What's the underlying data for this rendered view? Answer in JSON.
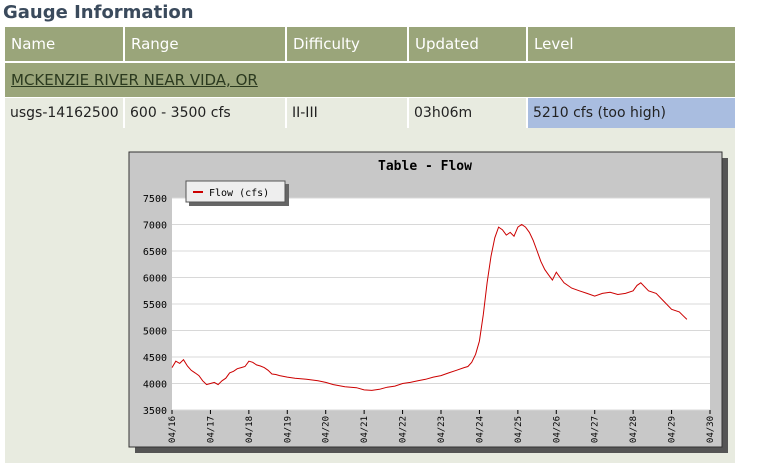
{
  "page": {
    "title": "Gauge Information"
  },
  "table": {
    "headers": [
      "Name",
      "Range",
      "Difficulty",
      "Updated",
      "Level"
    ],
    "river_name": "MCKENZIE RIVER NEAR VIDA, OR",
    "row": {
      "name": "usgs-14162500",
      "range": "600 - 3500 cfs",
      "difficulty": "II-III",
      "updated": "03h06m",
      "level": "5210 cfs (too high)"
    }
  },
  "colors": {
    "header_bg": "#9aa57a",
    "row_bg": "#e8ebe0",
    "level_bg": "#a9bde0",
    "series": "#cc0000"
  },
  "chart_data": {
    "type": "line",
    "title": "Table - Flow",
    "legend": "top-left",
    "grid": true,
    "ylim": [
      3500,
      7500
    ],
    "y_ticks": [
      "3500",
      "4000",
      "4500",
      "5000",
      "5500",
      "6000",
      "6500",
      "7000",
      "7500"
    ],
    "x_ticks": [
      "04/16",
      "04/17",
      "04/18",
      "04/19",
      "04/20",
      "04/21",
      "04/22",
      "04/23",
      "04/24",
      "04/25",
      "04/26",
      "04/27",
      "04/28",
      "04/29",
      "04/30"
    ],
    "xlim": [
      0,
      14
    ],
    "series": [
      {
        "name": "Flow (cfs)",
        "x": [
          0,
          0.1,
          0.2,
          0.3,
          0.4,
          0.5,
          0.6,
          0.7,
          0.8,
          0.9,
          1.0,
          1.1,
          1.2,
          1.3,
          1.4,
          1.5,
          1.6,
          1.7,
          1.8,
          1.9,
          2.0,
          2.1,
          2.2,
          2.3,
          2.4,
          2.5,
          2.6,
          2.7,
          2.8,
          3.0,
          3.2,
          3.5,
          3.8,
          4.0,
          4.2,
          4.5,
          4.8,
          5.0,
          5.2,
          5.4,
          5.6,
          5.8,
          6.0,
          6.2,
          6.4,
          6.6,
          6.8,
          7.0,
          7.2,
          7.4,
          7.6,
          7.7,
          7.8,
          7.9,
          8.0,
          8.1,
          8.2,
          8.3,
          8.4,
          8.5,
          8.6,
          8.7,
          8.8,
          8.9,
          9.0,
          9.1,
          9.2,
          9.3,
          9.4,
          9.5,
          9.6,
          9.7,
          9.8,
          9.9,
          10.0,
          10.1,
          10.2,
          10.4,
          10.6,
          10.8,
          11.0,
          11.2,
          11.4,
          11.6,
          11.8,
          12.0,
          12.1,
          12.2,
          12.4,
          12.6,
          12.8,
          13.0,
          13.2,
          13.3,
          13.4
        ],
        "y": [
          4300,
          4420,
          4380,
          4450,
          4330,
          4250,
          4200,
          4150,
          4050,
          3980,
          4000,
          4020,
          3980,
          4050,
          4100,
          4200,
          4230,
          4280,
          4300,
          4320,
          4420,
          4400,
          4350,
          4330,
          4300,
          4250,
          4180,
          4170,
          4150,
          4120,
          4100,
          4080,
          4050,
          4020,
          3980,
          3940,
          3920,
          3880,
          3870,
          3890,
          3930,
          3950,
          4000,
          4020,
          4050,
          4080,
          4120,
          4150,
          4200,
          4250,
          4300,
          4320,
          4400,
          4550,
          4800,
          5300,
          5900,
          6400,
          6750,
          6950,
          6900,
          6800,
          6850,
          6780,
          6950,
          7000,
          6950,
          6850,
          6700,
          6500,
          6300,
          6150,
          6050,
          5950,
          6100,
          6000,
          5900,
          5800,
          5750,
          5700,
          5650,
          5700,
          5720,
          5680,
          5700,
          5750,
          5850,
          5900,
          5750,
          5700,
          5550,
          5400,
          5350,
          5280,
          5210
        ]
      }
    ]
  }
}
